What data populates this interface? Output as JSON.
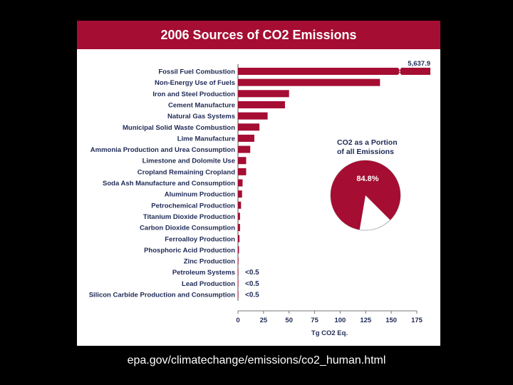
{
  "chart_data": {
    "type": "bar",
    "orientation": "horizontal",
    "title": "2006 Sources of CO2 Emissions",
    "xlabel": "Tg CO2 Eq.",
    "xlim": [
      0,
      175
    ],
    "xticks": [
      0,
      25,
      50,
      75,
      100,
      125,
      150,
      175
    ],
    "grid": false,
    "categories": [
      "Fossil Fuel Combustion",
      "Non-Energy Use of Fuels",
      "Iron and Steel Production",
      "Cement Manufacture",
      "Natural Gas Systems",
      "Municipal Solid Waste Combustion",
      "Lime Manufacture",
      "Ammonia Production and Urea Consumption",
      "Limestone and Dolomite Use",
      "Cropland Remaining Cropland",
      "Soda Ash Manufacture and Consumption",
      "Aluminum Production",
      "Petrochemical Production",
      "Titanium Dioxide Production",
      "Carbon Dioxide Consumption",
      "Ferroalloy Production",
      "Phosphoric Acid Production",
      "Zinc Production",
      "Petroleum Systems",
      "Lead Production",
      "Silicon Carbide Production and Consumption"
    ],
    "values": [
      5637.9,
      139,
      50,
      46,
      29,
      21,
      16,
      12,
      8,
      8,
      4.5,
      4,
      3,
      2,
      2,
      1.5,
      1,
      0.5,
      0.3,
      0.3,
      0.2
    ],
    "value_labels": [
      "5,637.9",
      "",
      "",
      "",
      "",
      "",
      "",
      "",
      "",
      "",
      "",
      "",
      "",
      "",
      "",
      "",
      "",
      "",
      "<0.5",
      "<0.5",
      "<0.5"
    ],
    "broken_bar_index": 0,
    "bar_color": "#a50d32",
    "inset_pie": {
      "title_line1": "CO2 as a Portion",
      "title_line2": "of all Emissions",
      "value": 84.8,
      "label": "84.8%",
      "color": "#a50d32"
    }
  },
  "caption": "epa.gov/climatechange/emissions/co2_human.html"
}
